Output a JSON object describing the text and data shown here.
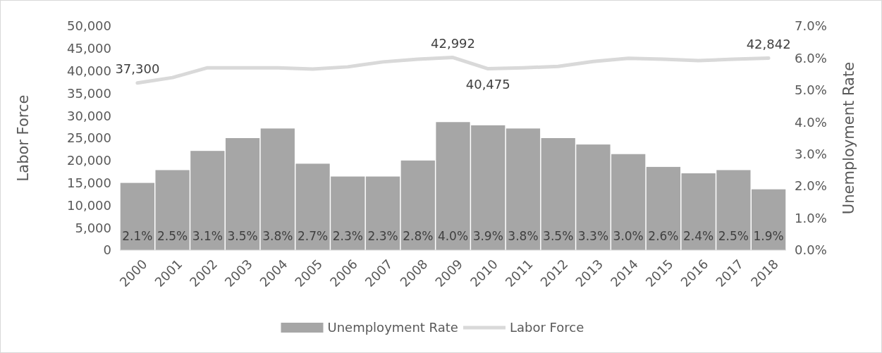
{
  "chart_data": {
    "type": "bar",
    "categories": [
      "2000",
      "2001",
      "2002",
      "2003",
      "2004",
      "2005",
      "2006",
      "2007",
      "2008",
      "2009",
      "2010",
      "2011",
      "2012",
      "2013",
      "2014",
      "2015",
      "2016",
      "2017",
      "2018"
    ],
    "series": [
      {
        "name": "Unemployment Rate",
        "axis": "y2",
        "color": "#a6a6a6",
        "values": [
          2.1,
          2.5,
          3.1,
          3.5,
          3.8,
          2.7,
          2.3,
          2.3,
          2.8,
          4.0,
          3.9,
          3.8,
          3.5,
          3.3,
          3.0,
          2.6,
          2.4,
          2.5,
          1.9
        ],
        "value_labels": [
          "2.1%",
          "2.5%",
          "3.1%",
          "3.5%",
          "3.8%",
          "2.7%",
          "2.3%",
          "2.3%",
          "2.8%",
          "4.0%",
          "3.9%",
          "3.8%",
          "3.5%",
          "3.3%",
          "3.0%",
          "2.6%",
          "2.4%",
          "2.5%",
          "1.9%"
        ]
      },
      {
        "name": "Labor Force",
        "type": "line",
        "color": "#d9d9d9",
        "values": [
          37300,
          38500,
          40700,
          40700,
          40700,
          40400,
          40900,
          42000,
          42600,
          42992,
          40475,
          40700,
          41000,
          42100,
          42800,
          42600,
          42300,
          42600,
          42842
        ],
        "value_labels": [
          "37,300",
          null,
          null,
          null,
          null,
          null,
          null,
          null,
          null,
          "42,992",
          "40,475",
          null,
          null,
          null,
          null,
          null,
          null,
          null,
          "42,842"
        ]
      }
    ],
    "ylabel": "Labor Force",
    "y2label": "Unemployment Rate",
    "ylim": [
      0,
      50000
    ],
    "yticks": [
      {
        "value": 0,
        "label": "0"
      },
      {
        "value": 5000,
        "label": "5,000"
      },
      {
        "value": 10000,
        "label": "10,000"
      },
      {
        "value": 15000,
        "label": "15,000"
      },
      {
        "value": 20000,
        "label": "20,000"
      },
      {
        "value": 25000,
        "label": "25,000"
      },
      {
        "value": 30000,
        "label": "30,000"
      },
      {
        "value": 35000,
        "label": "35,000"
      },
      {
        "value": 40000,
        "label": "40,000"
      },
      {
        "value": 45000,
        "label": "45,000"
      },
      {
        "value": 50000,
        "label": "50,000"
      }
    ],
    "y2lim": [
      0,
      7
    ],
    "y2ticks": [
      {
        "value": 0,
        "label": "0.0%"
      },
      {
        "value": 1,
        "label": "1.0%"
      },
      {
        "value": 2,
        "label": "2.0%"
      },
      {
        "value": 3,
        "label": "3.0%"
      },
      {
        "value": 4,
        "label": "4.0%"
      },
      {
        "value": 5,
        "label": "5.0%"
      },
      {
        "value": 6,
        "label": "6.0%"
      },
      {
        "value": 7,
        "label": "7.0%"
      }
    ],
    "legend": "bottom",
    "marker": "none",
    "line_style": "solid"
  }
}
